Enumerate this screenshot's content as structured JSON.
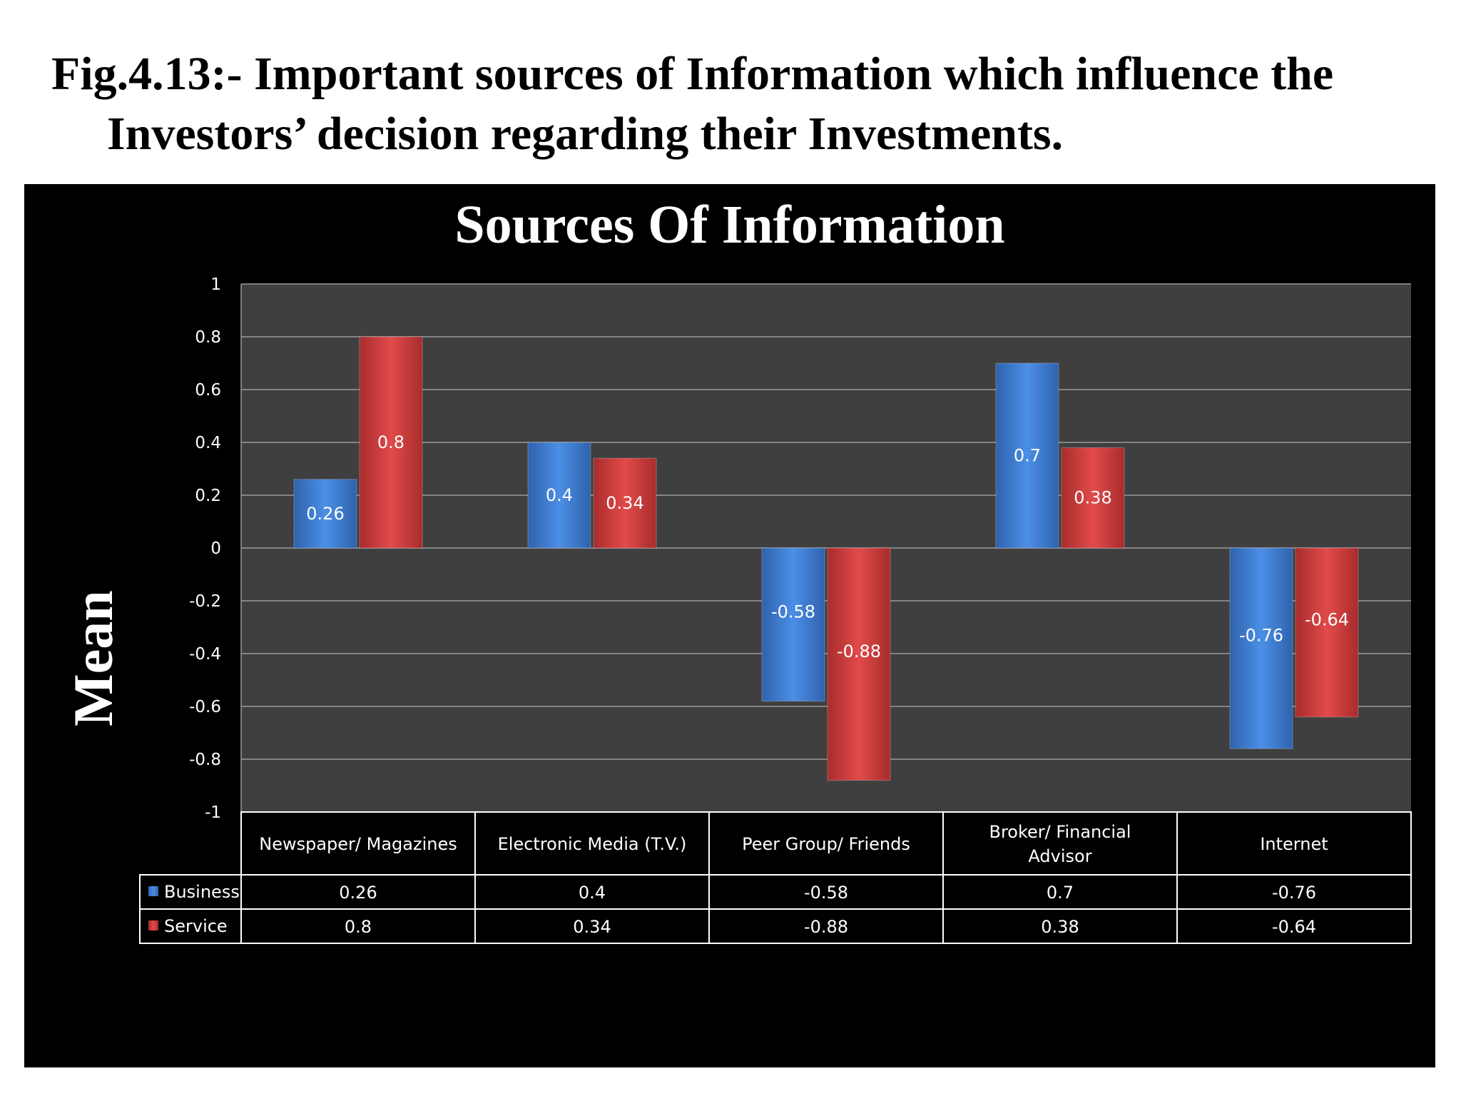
{
  "figure": {
    "caption_line1": "Fig.4.13:- Important sources of Information which influence the",
    "caption_line2": "Investors’ decision regarding their Investments."
  },
  "chart_data": {
    "type": "bar",
    "title": "Sources Of Information",
    "xlabel": "",
    "ylabel": "Mean",
    "ylim": [
      -1,
      1
    ],
    "yticks": [
      1,
      0.8,
      0.6,
      0.4,
      0.2,
      0,
      -0.2,
      -0.4,
      -0.6,
      -0.8,
      -1
    ],
    "ytick_labels": [
      "1",
      "0.8",
      "0.6",
      "0.4",
      "0.2",
      "0",
      "-0.2",
      "-0.4",
      "-0.6",
      "-0.8",
      "-1"
    ],
    "grid": true,
    "legend": "data table below chart",
    "categories": [
      [
        "Newspaper/ Magazines"
      ],
      [
        "Electronic Media (T.V.)"
      ],
      [
        "Peer Group/ Friends"
      ],
      [
        "Broker/ Financial",
        "Advisor"
      ],
      [
        "Internet"
      ]
    ],
    "series": [
      {
        "name": "Business",
        "color": "#3f7fd6",
        "values": [
          0.26,
          0.4,
          -0.58,
          0.7,
          -0.76
        ],
        "labels": [
          "0.26",
          "0.4",
          "-0.58",
          "0.7",
          "-0.76"
        ]
      },
      {
        "name": "Service",
        "color": "#d9403f",
        "values": [
          0.8,
          0.34,
          -0.88,
          0.38,
          -0.64
        ],
        "labels": [
          "0.8",
          "0.34",
          "-0.88",
          "0.38",
          "-0.64"
        ]
      }
    ],
    "colors": {
      "background": "#000000",
      "plot_area": "#403f40",
      "gridline": "#9a9a9a",
      "text": "#ffffff"
    }
  }
}
